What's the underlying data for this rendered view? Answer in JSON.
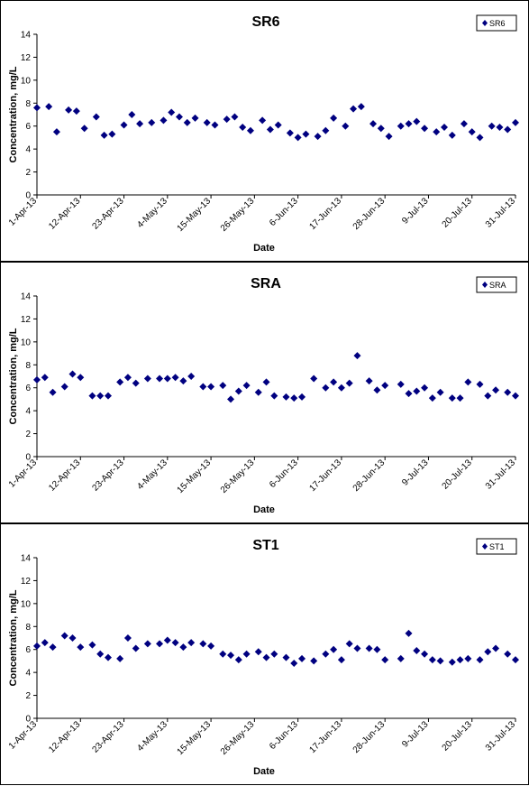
{
  "colors": {
    "marker": "#000080",
    "axis": "#000000",
    "text": "#000000",
    "background": "#ffffff"
  },
  "chart_data": [
    {
      "type": "scatter",
      "title": "SR6",
      "xlabel": "Date",
      "ylabel": "Concentration, mg/L",
      "ylim": [
        0,
        14
      ],
      "yticks": [
        "0",
        "2",
        "4",
        "6",
        "8",
        "10",
        "12",
        "14"
      ],
      "xlim": [
        "2013-04-01",
        "2013-07-31"
      ],
      "xticks": [
        "1-Apr-13",
        "12-Apr-13",
        "23-Apr-13",
        "4-May-13",
        "15-May-13",
        "26-May-13",
        "6-Jun-13",
        "17-Jun-13",
        "28-Jun-13",
        "9-Jul-13",
        "20-Jul-13",
        "31-Jul-13"
      ],
      "grid": false,
      "legend_position": "top-right",
      "series": [
        {
          "name": "SR6",
          "x": [
            "2013-04-01",
            "2013-04-04",
            "2013-04-06",
            "2013-04-09",
            "2013-04-11",
            "2013-04-13",
            "2013-04-16",
            "2013-04-18",
            "2013-04-20",
            "2013-04-23",
            "2013-04-25",
            "2013-04-27",
            "2013-04-30",
            "2013-05-03",
            "2013-05-05",
            "2013-05-07",
            "2013-05-09",
            "2013-05-11",
            "2013-05-14",
            "2013-05-16",
            "2013-05-19",
            "2013-05-21",
            "2013-05-23",
            "2013-05-25",
            "2013-05-28",
            "2013-05-30",
            "2013-06-01",
            "2013-06-04",
            "2013-06-06",
            "2013-06-08",
            "2013-06-11",
            "2013-06-13",
            "2013-06-15",
            "2013-06-18",
            "2013-06-20",
            "2013-06-22",
            "2013-06-25",
            "2013-06-27",
            "2013-06-29",
            "2013-07-02",
            "2013-07-04",
            "2013-07-06",
            "2013-07-08",
            "2013-07-11",
            "2013-07-13",
            "2013-07-15",
            "2013-07-18",
            "2013-07-20",
            "2013-07-22",
            "2013-07-25",
            "2013-07-27",
            "2013-07-29",
            "2013-07-31"
          ],
          "y": [
            7.6,
            7.7,
            5.5,
            7.4,
            7.3,
            5.8,
            6.8,
            5.2,
            5.3,
            6.1,
            7.0,
            6.2,
            6.3,
            6.5,
            7.2,
            6.8,
            6.3,
            6.7,
            6.3,
            6.1,
            6.6,
            6.8,
            5.9,
            5.6,
            6.5,
            5.7,
            6.1,
            5.4,
            5.0,
            5.3,
            5.1,
            5.6,
            6.7,
            6.0,
            7.5,
            7.7,
            6.2,
            5.8,
            5.1,
            6.0,
            6.2,
            6.4,
            5.8,
            5.5,
            5.9,
            5.2,
            6.2,
            5.5,
            5.0,
            6.0,
            5.9,
            5.7,
            6.3
          ]
        }
      ]
    },
    {
      "type": "scatter",
      "title": "SRA",
      "xlabel": "Date",
      "ylabel": "Concentration, mg/L",
      "ylim": [
        0,
        14
      ],
      "yticks": [
        "0",
        "2",
        "4",
        "6",
        "8",
        "10",
        "12",
        "14"
      ],
      "xlim": [
        "2013-04-01",
        "2013-07-31"
      ],
      "xticks": [
        "1-Apr-13",
        "12-Apr-13",
        "23-Apr-13",
        "4-May-13",
        "15-May-13",
        "26-May-13",
        "6-Jun-13",
        "17-Jun-13",
        "28-Jun-13",
        "9-Jul-13",
        "20-Jul-13",
        "31-Jul-13"
      ],
      "grid": false,
      "legend_position": "top-right",
      "series": [
        {
          "name": "SRA",
          "x": [
            "2013-04-01",
            "2013-04-03",
            "2013-04-05",
            "2013-04-08",
            "2013-04-10",
            "2013-04-12",
            "2013-04-15",
            "2013-04-17",
            "2013-04-19",
            "2013-04-22",
            "2013-04-24",
            "2013-04-26",
            "2013-04-29",
            "2013-05-02",
            "2013-05-04",
            "2013-05-06",
            "2013-05-08",
            "2013-05-10",
            "2013-05-13",
            "2013-05-15",
            "2013-05-18",
            "2013-05-20",
            "2013-05-22",
            "2013-05-24",
            "2013-05-27",
            "2013-05-29",
            "2013-05-31",
            "2013-06-03",
            "2013-06-05",
            "2013-06-07",
            "2013-06-10",
            "2013-06-13",
            "2013-06-15",
            "2013-06-17",
            "2013-06-19",
            "2013-06-21",
            "2013-06-24",
            "2013-06-26",
            "2013-06-28",
            "2013-07-02",
            "2013-07-04",
            "2013-07-06",
            "2013-07-08",
            "2013-07-10",
            "2013-07-12",
            "2013-07-15",
            "2013-07-17",
            "2013-07-19",
            "2013-07-22",
            "2013-07-24",
            "2013-07-26",
            "2013-07-29",
            "2013-07-31"
          ],
          "y": [
            6.7,
            6.9,
            5.6,
            6.1,
            7.2,
            6.9,
            5.3,
            5.3,
            5.3,
            6.5,
            6.9,
            6.4,
            6.8,
            6.8,
            6.8,
            6.9,
            6.6,
            7.0,
            6.1,
            6.1,
            6.2,
            5.0,
            5.7,
            6.2,
            5.6,
            6.5,
            5.3,
            5.2,
            5.1,
            5.2,
            6.8,
            6.0,
            6.5,
            6.0,
            6.4,
            8.8,
            6.6,
            5.8,
            6.2,
            6.3,
            5.5,
            5.7,
            6.0,
            5.1,
            5.6,
            5.1,
            5.1,
            6.5,
            6.3,
            5.3,
            5.8,
            5.6,
            5.3
          ]
        }
      ]
    },
    {
      "type": "scatter",
      "title": "ST1",
      "xlabel": "Date",
      "ylabel": "Concentration, mg/L",
      "ylim": [
        0,
        14
      ],
      "yticks": [
        "0",
        "2",
        "4",
        "6",
        "8",
        "10",
        "12",
        "14"
      ],
      "xlim": [
        "2013-04-01",
        "2013-07-31"
      ],
      "xticks": [
        "1-Apr-13",
        "12-Apr-13",
        "23-Apr-13",
        "4-May-13",
        "15-May-13",
        "26-May-13",
        "6-Jun-13",
        "17-Jun-13",
        "28-Jun-13",
        "9-Jul-13",
        "20-Jul-13",
        "31-Jul-13"
      ],
      "grid": false,
      "legend_position": "top-right",
      "series": [
        {
          "name": "ST1",
          "x": [
            "2013-04-01",
            "2013-04-03",
            "2013-04-05",
            "2013-04-08",
            "2013-04-10",
            "2013-04-12",
            "2013-04-15",
            "2013-04-17",
            "2013-04-19",
            "2013-04-22",
            "2013-04-24",
            "2013-04-26",
            "2013-04-29",
            "2013-05-02",
            "2013-05-04",
            "2013-05-06",
            "2013-05-08",
            "2013-05-10",
            "2013-05-13",
            "2013-05-15",
            "2013-05-18",
            "2013-05-20",
            "2013-05-22",
            "2013-05-24",
            "2013-05-27",
            "2013-05-29",
            "2013-05-31",
            "2013-06-03",
            "2013-06-05",
            "2013-06-07",
            "2013-06-10",
            "2013-06-13",
            "2013-06-15",
            "2013-06-17",
            "2013-06-19",
            "2013-06-21",
            "2013-06-24",
            "2013-06-26",
            "2013-06-28",
            "2013-07-02",
            "2013-07-04",
            "2013-07-06",
            "2013-07-08",
            "2013-07-10",
            "2013-07-12",
            "2013-07-15",
            "2013-07-17",
            "2013-07-19",
            "2013-07-22",
            "2013-07-24",
            "2013-07-26",
            "2013-07-29",
            "2013-07-31"
          ],
          "y": [
            6.3,
            6.6,
            6.2,
            7.2,
            7.0,
            6.2,
            6.4,
            5.6,
            5.3,
            5.2,
            7.0,
            6.1,
            6.5,
            6.5,
            6.8,
            6.6,
            6.2,
            6.6,
            6.5,
            6.3,
            5.6,
            5.5,
            5.1,
            5.6,
            5.8,
            5.3,
            5.6,
            5.3,
            4.8,
            5.2,
            5.0,
            5.6,
            6.0,
            5.1,
            6.5,
            6.1,
            6.1,
            6.0,
            5.1,
            5.2,
            7.4,
            5.9,
            5.6,
            5.1,
            5.0,
            4.9,
            5.1,
            5.2,
            5.1,
            5.8,
            6.1,
            5.6,
            5.1
          ]
        }
      ]
    }
  ]
}
